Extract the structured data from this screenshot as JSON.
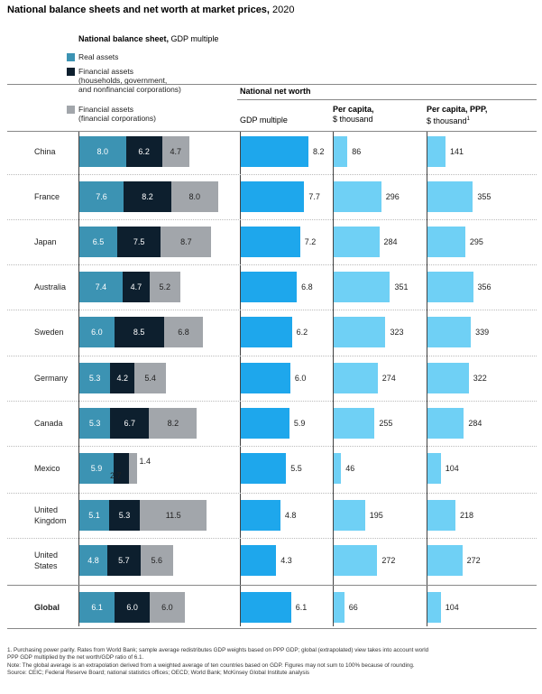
{
  "title_bold": "National balance sheets and net worth at market prices,",
  "title_rest": " 2020",
  "balance_header_bold": "National balance sheet,",
  "balance_header_rest": " GDP multiple",
  "legend": [
    {
      "lines": [
        "Real assets"
      ],
      "color": "#3c93b3"
    },
    {
      "lines": [
        "Financial assets",
        "(households, government,",
        "and nonfinancial corporations)"
      ],
      "color": "#0d1f2e"
    },
    {
      "lines": [
        "Financial assets",
        "(financial corporations)"
      ],
      "color": "#a2a6ab"
    }
  ],
  "net_worth_header": "National net worth",
  "col_headers": {
    "gdp": "GDP multiple",
    "pc_bold": "Per capita,",
    "pc_unit": "$ thousand",
    "ppp_bold": "Per capita, PPP,",
    "ppp_unit": "$ thousand",
    "ppp_sup": "1"
  },
  "colors": {
    "real": "#3c93b3",
    "fin_nonfin": "#0d1f2e",
    "fin_corp": "#a2a6ab",
    "networth": "#1ea7ec",
    "percapita": "#6fd0f5"
  },
  "chart_data": {
    "type": "bar",
    "categories": [
      "China",
      "France",
      "Japan",
      "Australia",
      "Sweden",
      "Germany",
      "Canada",
      "Mexico",
      "United Kingdom",
      "United States",
      "Global"
    ],
    "category_lines": [
      [
        "China"
      ],
      [
        "France"
      ],
      [
        "Japan"
      ],
      [
        "Australia"
      ],
      [
        "Sweden"
      ],
      [
        "Germany"
      ],
      [
        "Canada"
      ],
      [
        "Mexico"
      ],
      [
        "United",
        "Kingdom"
      ],
      [
        "United",
        "States"
      ],
      [
        "Global"
      ]
    ],
    "balance_sheet": {
      "series": [
        {
          "name": "Real assets",
          "values": [
            8.0,
            7.6,
            6.5,
            7.4,
            6.0,
            5.3,
            5.3,
            5.9,
            5.1,
            4.8,
            6.1
          ]
        },
        {
          "name": "Financial assets (households, government, and nonfinancial corporations)",
          "values": [
            6.2,
            8.2,
            7.5,
            4.7,
            8.5,
            4.2,
            6.7,
            2.7,
            5.3,
            5.7,
            6.0
          ]
        },
        {
          "name": "Financial assets (financial corporations)",
          "values": [
            4.7,
            8.0,
            8.7,
            5.2,
            6.8,
            5.4,
            8.2,
            1.4,
            11.5,
            5.6,
            6.0
          ]
        }
      ]
    },
    "net_worth_gdp_multiple": [
      8.2,
      7.7,
      7.2,
      6.8,
      6.2,
      6.0,
      5.9,
      5.5,
      4.8,
      4.3,
      6.1
    ],
    "per_capita_usd_thousand": [
      86,
      296,
      284,
      351,
      323,
      274,
      255,
      46,
      195,
      272,
      66
    ],
    "per_capita_ppp_usd_thousand": [
      141,
      355,
      295,
      356,
      339,
      322,
      284,
      104,
      218,
      272,
      104
    ]
  },
  "footnotes": [
    "1.   Purchasing power parity. Rates from World Bank; sample average redistributes GDP weights based on PPP GDP; global (extrapolated) view takes into account world",
    "      PPP GDP multiplied by the net worth/GDP ratio of 6.1.",
    "Note: The global average is an extrapolation derived from a weighted average of ten countries based on GDP. Figures may not sum to 100% because of rounding.",
    "Source: CEIC; Federal Reserve Board; national statistics offices; OECD; World Bank; McKinsey Global Institute analysis"
  ]
}
